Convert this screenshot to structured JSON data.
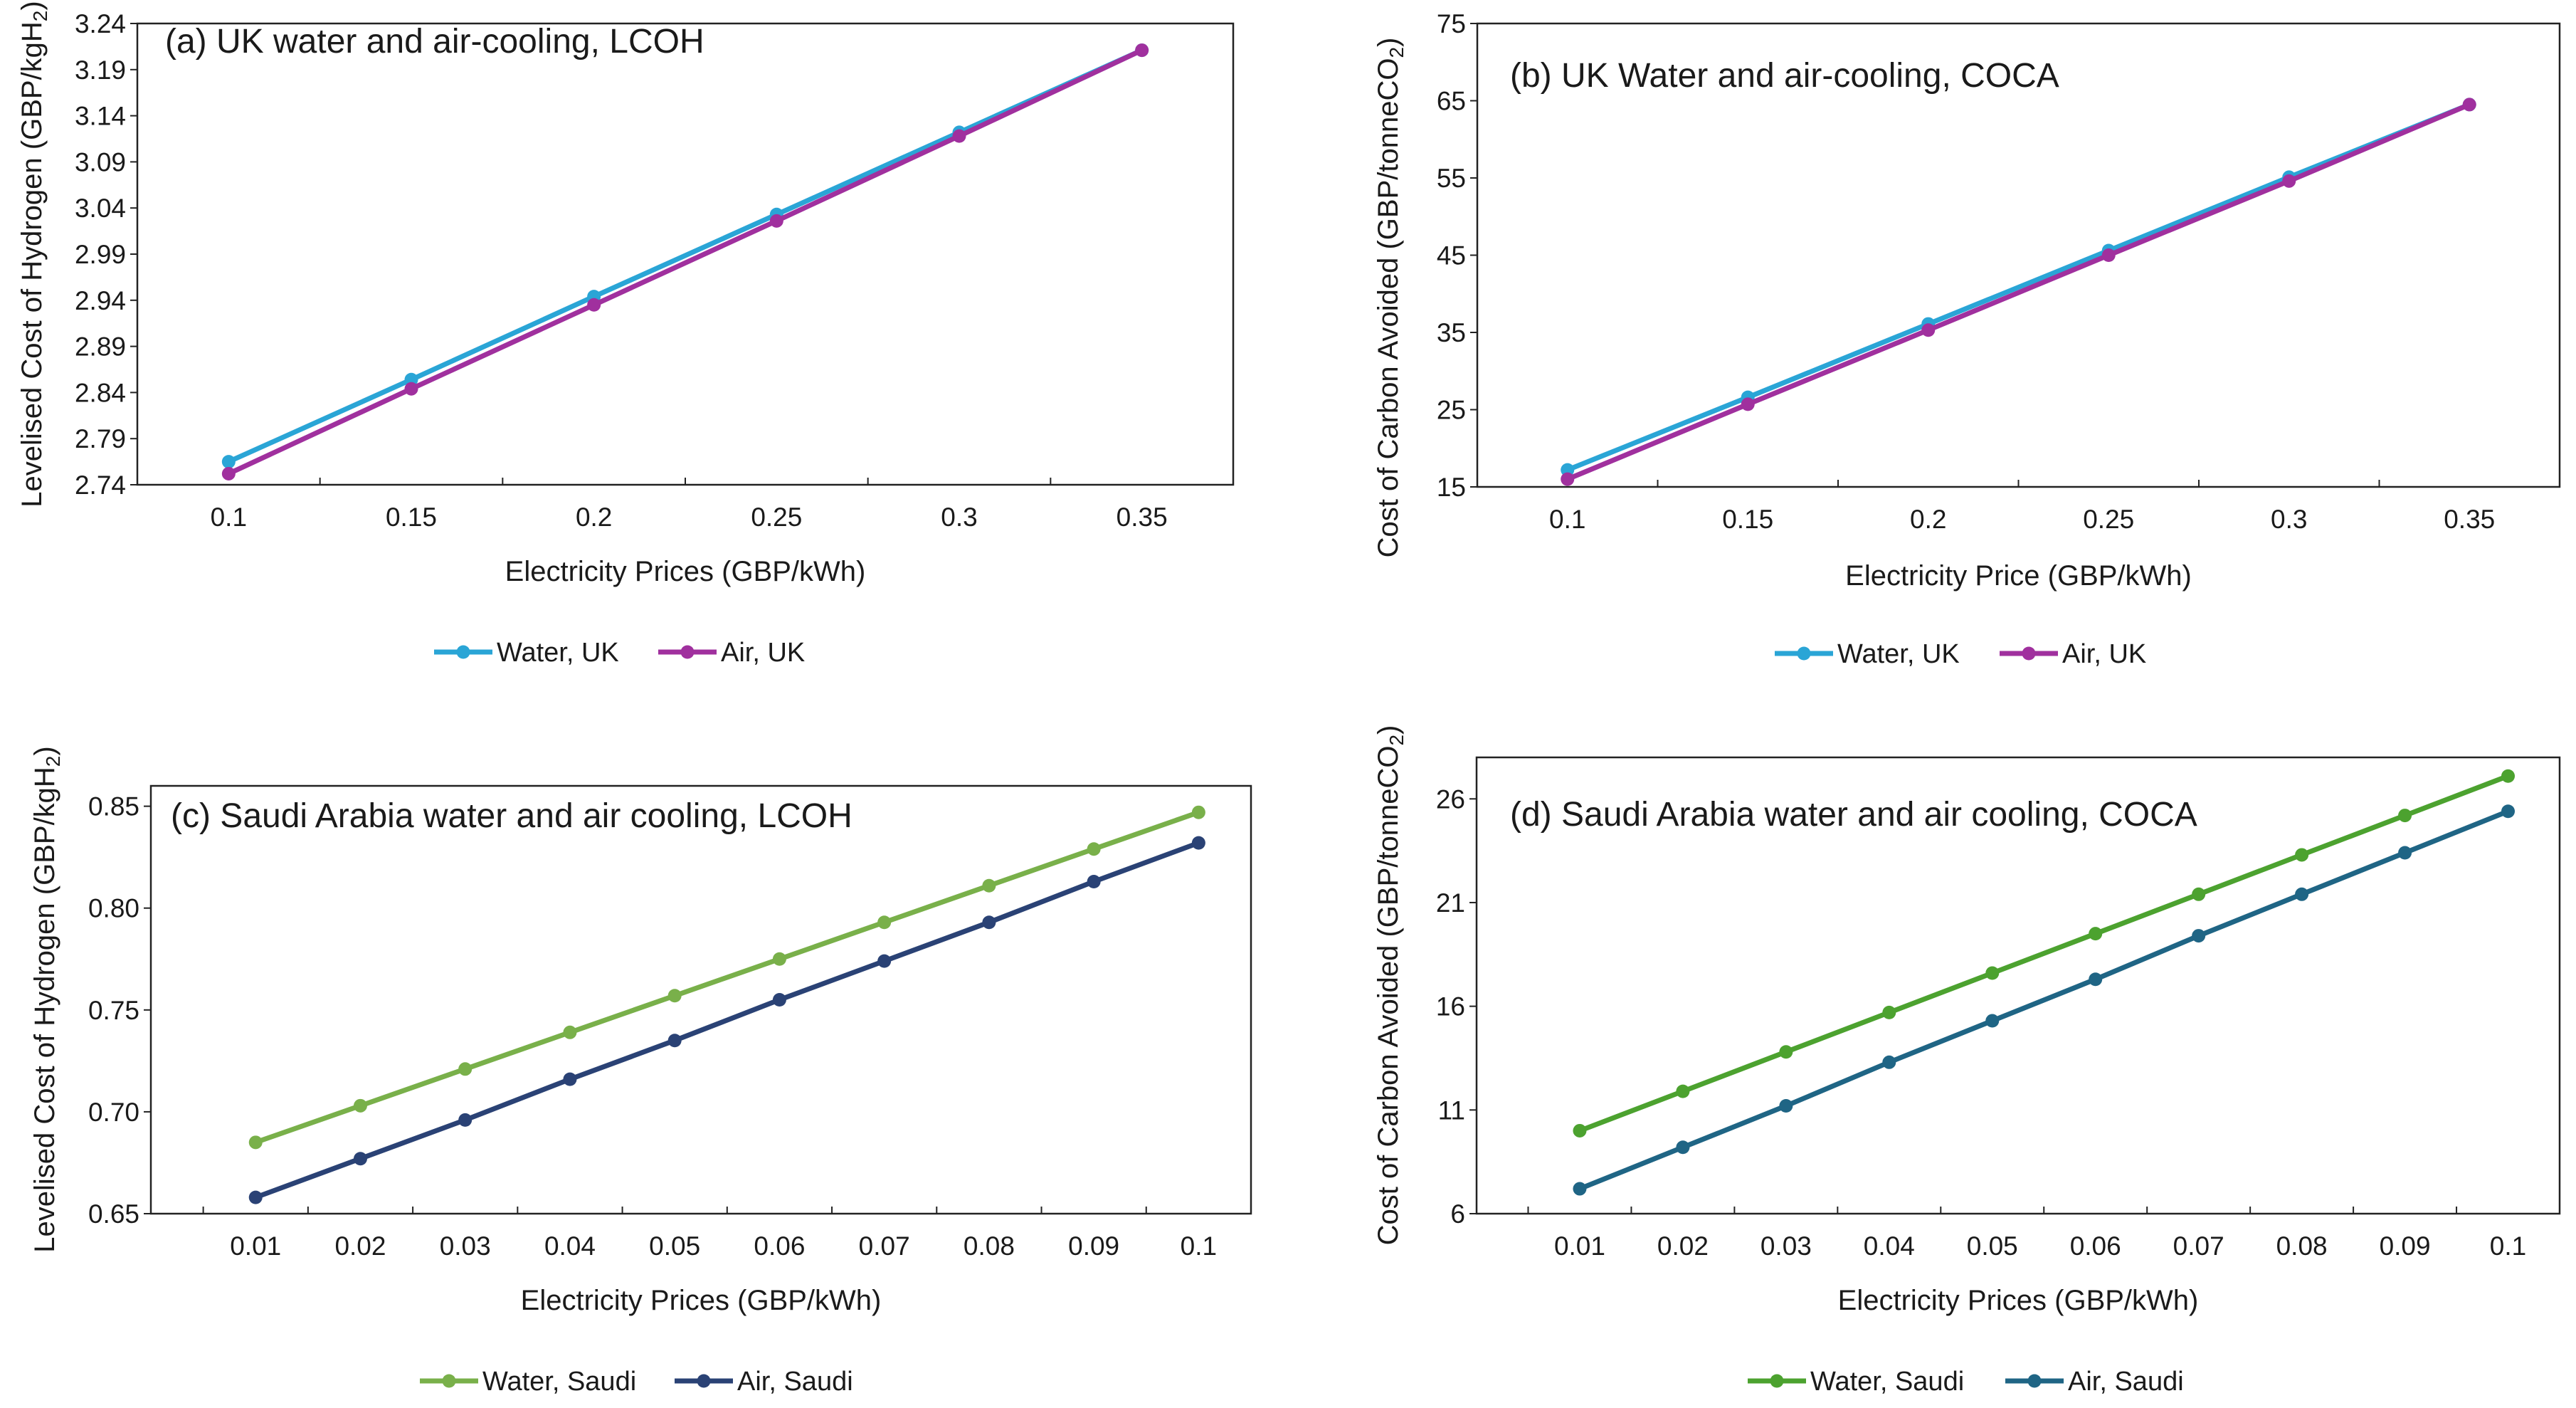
{
  "chart_data": [
    {
      "type": "line",
      "title": "(a) UK water and air-cooling, LCOH",
      "xlabel": "Electricity Prices (GBP/kWh)",
      "ylabel_main": "Levelised Cost of Hydrogen (GBP/kgH",
      "ylabel_sub": "2",
      "ylabel_end": ")",
      "categories": [
        "0.1",
        "0.15",
        "0.2",
        "0.25",
        "0.3",
        "0.35"
      ],
      "x": [
        0.1,
        0.15,
        0.2,
        0.25,
        0.3,
        0.35
      ],
      "xlim": [
        0.075,
        0.375
      ],
      "ylim": [
        2.74,
        3.24
      ],
      "yticks": [
        "2.74",
        "2.79",
        "2.84",
        "2.89",
        "2.94",
        "2.99",
        "3.04",
        "3.09",
        "3.14",
        "3.19",
        "3.24"
      ],
      "series": [
        {
          "name": "Water, UK",
          "color": "#2aa5d6",
          "values": [
            2.765,
            2.854,
            2.944,
            3.033,
            3.122,
            3.211
          ]
        },
        {
          "name": "Air, UK",
          "color": "#a0309e",
          "values": [
            2.752,
            2.844,
            2.935,
            3.026,
            3.118,
            3.211
          ]
        }
      ]
    },
    {
      "type": "line",
      "title": "(b) UK Water and air-cooling, COCA",
      "xlabel": "Electricity Price (GBP/kWh)",
      "ylabel_main": "Cost of Carbon Avoided (GBP/tonneCO",
      "ylabel_sub": "2",
      "ylabel_end": ")",
      "categories": [
        "0.1",
        "0.15",
        "0.2",
        "0.25",
        "0.3",
        "0.35"
      ],
      "x": [
        0.1,
        0.15,
        0.2,
        0.25,
        0.3,
        0.35
      ],
      "xlim": [
        0.075,
        0.375
      ],
      "ylim": [
        15,
        75
      ],
      "yticks": [
        "15",
        "25",
        "35",
        "45",
        "55",
        "65",
        "75"
      ],
      "series": [
        {
          "name": "Water, UK",
          "color": "#2aa5d6",
          "values": [
            17.2,
            26.6,
            36.1,
            45.6,
            55.1,
            64.5
          ]
        },
        {
          "name": "Air, UK",
          "color": "#a0309e",
          "values": [
            16.0,
            25.7,
            35.3,
            45.0,
            54.6,
            64.5
          ]
        }
      ]
    },
    {
      "type": "line",
      "title": "(c) Saudi Arabia water and air cooling, LCOH",
      "xlabel": "Electricity Prices (GBP/kWh)",
      "ylabel_main": "Levelised Cost of Hydrogen (GBP/kgH",
      "ylabel_sub": "2",
      "ylabel_end": ")",
      "categories": [
        "0.01",
        "0.02",
        "0.03",
        "0.04",
        "0.05",
        "0.06",
        "0.07",
        "0.08",
        "0.09",
        "0.1"
      ],
      "x": [
        0.01,
        0.02,
        0.03,
        0.04,
        0.05,
        0.06,
        0.07,
        0.08,
        0.09,
        0.1
      ],
      "xlim": [
        0.0,
        0.105
      ],
      "ylim": [
        0.65,
        0.86
      ],
      "yticks": [
        "0.65",
        "0.70",
        "0.75",
        "0.80",
        "0.85"
      ],
      "series": [
        {
          "name": "Water, Saudi",
          "color": "#79b04a",
          "values": [
            0.685,
            0.703,
            0.721,
            0.739,
            0.757,
            0.775,
            0.793,
            0.811,
            0.829,
            0.847
          ]
        },
        {
          "name": "Air, Saudi",
          "color": "#2a4275",
          "values": [
            0.658,
            0.677,
            0.696,
            0.716,
            0.735,
            0.755,
            0.774,
            0.793,
            0.813,
            0.832
          ]
        }
      ]
    },
    {
      "type": "line",
      "title": "(d) Saudi Arabia water and air cooling, COCA",
      "xlabel": "Electricity Prices (GBP/kWh)",
      "ylabel_main": "Cost of Carbon Avoided (GBP/tonneCO",
      "ylabel_sub": "2",
      "ylabel_end": ")",
      "categories": [
        "0.01",
        "0.02",
        "0.03",
        "0.04",
        "0.05",
        "0.06",
        "0.07",
        "0.08",
        "0.09",
        "0.1"
      ],
      "x": [
        0.01,
        0.02,
        0.03,
        0.04,
        0.05,
        0.06,
        0.07,
        0.08,
        0.09,
        0.1
      ],
      "xlim": [
        0.0,
        0.105
      ],
      "ylim": [
        6,
        28
      ],
      "yticks": [
        "6",
        "11",
        "16",
        "21",
        "26"
      ],
      "series": [
        {
          "name": "Water, Saudi",
          "color": "#4ca22f",
          "values": [
            10.0,
            11.9,
            13.8,
            15.7,
            17.6,
            19.5,
            21.4,
            23.3,
            25.2,
            27.1
          ]
        },
        {
          "name": "Air, Saudi",
          "color": "#1f6585",
          "values": [
            7.2,
            9.2,
            11.2,
            13.3,
            15.3,
            17.3,
            19.4,
            21.4,
            23.4,
            25.4
          ]
        }
      ]
    }
  ]
}
